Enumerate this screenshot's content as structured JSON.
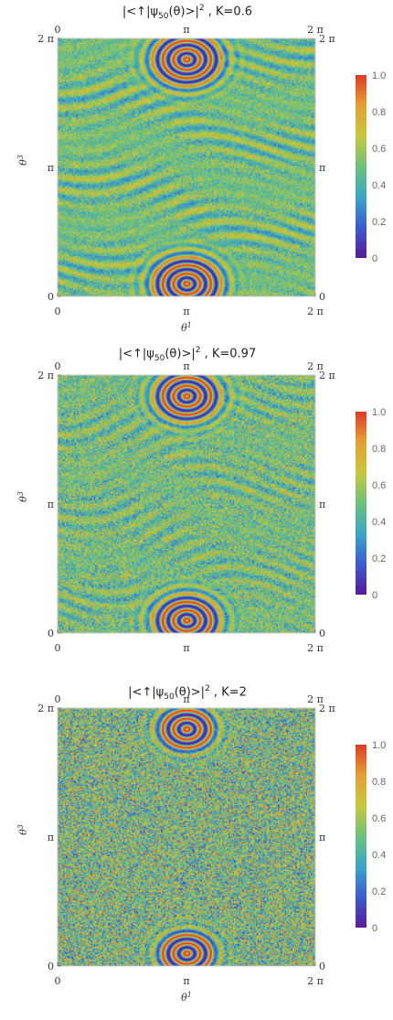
{
  "chart_data": [
    {
      "type": "heatmap",
      "title_prefix": "|<↑|ψ",
      "title_sub": "50",
      "title_mid": "(θ)>|",
      "title_sup": "2",
      "title_suffix": " , K=0.6",
      "K": 0.6,
      "xlabel": "θ",
      "xlabel_sup": "1",
      "ylabel": "θ",
      "ylabel_sup": "3",
      "xticks": [
        "0",
        "π",
        "2 π"
      ],
      "yticks": [
        "0",
        "π",
        "2 π"
      ],
      "xlim": [
        0,
        6.2832
      ],
      "ylim": [
        0,
        6.2832
      ],
      "colorbar": {
        "ticks": [
          "0",
          "0.2",
          "0.4",
          "0.6",
          "0.8",
          "1.0"
        ],
        "range": [
          0,
          1
        ]
      },
      "show_xlabel": true
    },
    {
      "type": "heatmap",
      "title_prefix": "|<↑|ψ",
      "title_sub": "50",
      "title_mid": "(θ)>|",
      "title_sup": "2",
      "title_suffix": " , K=0.97",
      "K": 0.97,
      "xlabel": "θ",
      "xlabel_sup": "1",
      "ylabel": "θ",
      "ylabel_sup": "3",
      "xticks": [
        "0",
        "π",
        "2 π"
      ],
      "yticks": [
        "0",
        "π",
        "2 π"
      ],
      "xlim": [
        0,
        6.2832
      ],
      "ylim": [
        0,
        6.2832
      ],
      "colorbar": {
        "ticks": [
          "0",
          "0.2",
          "0.4",
          "0.6",
          "0.8",
          "1.0"
        ],
        "range": [
          0,
          1
        ]
      },
      "show_xlabel": false
    },
    {
      "type": "heatmap",
      "title_prefix": "|<↑|ψ",
      "title_sub": "50",
      "title_mid": "(θ)>|",
      "title_sup": "2",
      "title_suffix": " , K=2",
      "K": 2,
      "xlabel": "θ",
      "xlabel_sup": "1",
      "ylabel": "θ",
      "ylabel_sup": "3",
      "xticks": [
        "0",
        "π",
        "2 π"
      ],
      "yticks": [
        "0",
        "π",
        "2 π"
      ],
      "xlim": [
        0,
        6.2832
      ],
      "ylim": [
        0,
        6.2832
      ],
      "colorbar": {
        "ticks": [
          "0",
          "0.2",
          "0.4",
          "0.6",
          "0.8",
          "1.0"
        ],
        "range": [
          0,
          1
        ]
      },
      "show_xlabel": true
    }
  ],
  "colors": {
    "colormap": [
      "#5a1a9a",
      "#3b5bd0",
      "#3aa6c8",
      "#6cc27a",
      "#c8c83c",
      "#e5a032",
      "#e03a25"
    ],
    "frame": "#c8c8c8"
  }
}
